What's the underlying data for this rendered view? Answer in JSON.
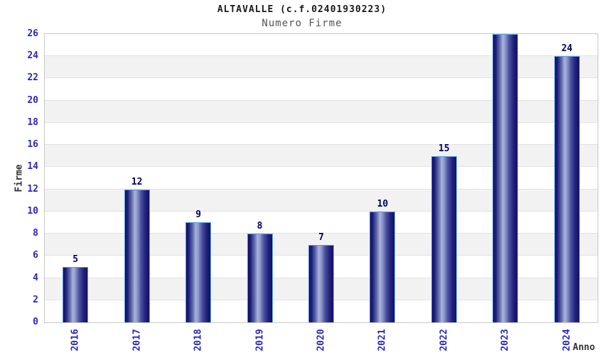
{
  "chart_data": {
    "type": "bar",
    "title": "ALTAVALLE (c.f.02401930223)",
    "subtitle": "Numero Firme",
    "categories": [
      "2016",
      "2017",
      "2018",
      "2019",
      "2020",
      "2021",
      "2022",
      "2023",
      "2024"
    ],
    "values": [
      5,
      12,
      9,
      8,
      7,
      10,
      15,
      26,
      24
    ],
    "xlabel": "Anno",
    "ylabel": "Firme",
    "ylim": [
      0,
      26
    ],
    "ytick_step": 2,
    "yticks": [
      0,
      2,
      4,
      6,
      8,
      10,
      12,
      14,
      16,
      18,
      20,
      22,
      24,
      26
    ],
    "legend": "none",
    "grid": "alternating horizontal bands every 2 units with light gridlines",
    "colors": {
      "bar_dark": "#10105f",
      "bar_mid": "#3a4294",
      "bar_light": "#aab4dd",
      "bar_border": "#5b9ce8",
      "axis_label_blue": "#2727c3",
      "value_label": "#00006a",
      "band_gray": "#f2f2f2",
      "gridline": "#e2e2e2",
      "plot_border": "#c9c9c9",
      "title_color": "#1a1a1a",
      "subtitle_color": "#555555",
      "axis_title_color": "#333333",
      "background": "#ffffff"
    }
  }
}
